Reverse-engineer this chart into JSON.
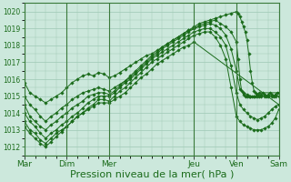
{
  "background_color": "#cce8dc",
  "grid_color": "#9ec8b4",
  "line_color": "#1a6b1a",
  "marker_color": "#1a6b1a",
  "xlabel": "Pression niveau de la mer( hPa )",
  "xlabel_fontsize": 8,
  "tick_labels": [
    "Mar",
    "Dim",
    "Mer",
    "Jeu",
    "Ven",
    "Sam"
  ],
  "ylim": [
    1011.5,
    1020.5
  ],
  "yticks": [
    1012,
    1013,
    1014,
    1015,
    1016,
    1017,
    1018,
    1019,
    1020
  ],
  "xlim": [
    0,
    144
  ],
  "day_ticks": [
    0,
    24,
    48,
    96,
    120,
    144
  ],
  "series": [
    {
      "x": [
        0,
        3,
        6,
        9,
        12,
        15,
        18,
        21,
        24,
        27,
        30,
        33,
        36,
        39,
        42,
        45,
        48,
        51,
        54,
        57,
        60,
        63,
        66,
        69,
        72,
        75,
        78,
        81,
        84,
        87,
        90,
        93,
        96,
        99,
        102,
        105,
        108,
        111,
        114,
        117,
        120,
        121,
        122,
        123,
        124,
        125,
        126,
        127,
        128,
        129,
        130,
        131,
        132,
        133,
        134,
        135,
        136,
        137,
        138,
        139,
        140,
        141,
        142,
        143,
        144
      ],
      "y": [
        1015.8,
        1015.2,
        1015.0,
        1014.8,
        1014.6,
        1014.8,
        1015.0,
        1015.2,
        1015.5,
        1015.8,
        1016.0,
        1016.2,
        1016.3,
        1016.2,
        1016.4,
        1016.3,
        1016.1,
        1016.2,
        1016.4,
        1016.6,
        1016.8,
        1017.0,
        1017.2,
        1017.4,
        1017.5,
        1017.7,
        1017.9,
        1018.1,
        1018.3,
        1018.5,
        1018.7,
        1018.9,
        1019.1,
        1019.3,
        1019.4,
        1019.5,
        1019.6,
        1019.7,
        1019.8,
        1019.9,
        1020.0,
        1019.9,
        1019.7,
        1019.4,
        1019.1,
        1018.8,
        1018.3,
        1017.5,
        1016.5,
        1015.8,
        1015.3,
        1015.2,
        1015.1,
        1015.0,
        1015.1,
        1015.2,
        1015.1,
        1015.0,
        1015.1,
        1015.2,
        1015.1,
        1015.0,
        1015.1,
        1015.2,
        1015.2
      ]
    },
    {
      "x": [
        0,
        3,
        6,
        9,
        12,
        15,
        18,
        21,
        24,
        27,
        30,
        33,
        36,
        39,
        42,
        45,
        48,
        51,
        54,
        57,
        60,
        63,
        66,
        69,
        72,
        75,
        78,
        81,
        84,
        87,
        90,
        93,
        96,
        99,
        102,
        105,
        108,
        111,
        114,
        117,
        120,
        121,
        122,
        123,
        124,
        125,
        126,
        127,
        128,
        129,
        130,
        131,
        132,
        133,
        144
      ],
      "y": [
        1015.0,
        1014.5,
        1014.2,
        1013.8,
        1013.5,
        1013.8,
        1014.0,
        1014.3,
        1014.5,
        1014.8,
        1015.0,
        1015.2,
        1015.3,
        1015.4,
        1015.5,
        1015.4,
        1015.3,
        1015.5,
        1015.7,
        1015.9,
        1016.1,
        1016.4,
        1016.7,
        1017.0,
        1017.3,
        1017.5,
        1017.8,
        1018.0,
        1018.2,
        1018.4,
        1018.6,
        1018.8,
        1019.0,
        1019.2,
        1019.3,
        1019.4,
        1019.5,
        1019.3,
        1019.1,
        1018.8,
        1018.2,
        1017.2,
        1016.0,
        1015.3,
        1015.1,
        1015.0,
        1015.0,
        1015.0,
        1015.0,
        1015.0,
        1015.0,
        1015.0,
        1015.1,
        1015.2,
        1015.2
      ]
    },
    {
      "x": [
        0,
        3,
        6,
        9,
        12,
        15,
        18,
        21,
        24,
        27,
        30,
        33,
        36,
        39,
        42,
        45,
        48,
        51,
        54,
        57,
        60,
        63,
        66,
        69,
        72,
        75,
        78,
        81,
        84,
        87,
        90,
        93,
        96,
        99,
        102,
        105,
        108,
        111,
        114,
        117,
        120,
        122,
        124,
        126,
        128,
        130,
        132,
        134,
        136,
        138,
        140,
        142,
        144
      ],
      "y": [
        1014.5,
        1013.8,
        1013.5,
        1013.2,
        1013.0,
        1013.3,
        1013.5,
        1013.8,
        1014.0,
        1014.3,
        1014.5,
        1014.7,
        1015.0,
        1015.1,
        1015.2,
        1015.2,
        1015.1,
        1015.3,
        1015.6,
        1015.9,
        1016.2,
        1016.5,
        1016.8,
        1017.1,
        1017.4,
        1017.6,
        1017.9,
        1018.1,
        1018.3,
        1018.5,
        1018.7,
        1018.9,
        1019.0,
        1019.1,
        1019.2,
        1019.3,
        1019.2,
        1019.0,
        1018.6,
        1017.8,
        1016.5,
        1015.4,
        1015.2,
        1015.1,
        1015.0,
        1015.0,
        1015.0,
        1015.0,
        1015.0,
        1015.0,
        1015.0,
        1015.0,
        1015.0
      ]
    },
    {
      "x": [
        0,
        3,
        6,
        9,
        12,
        15,
        18,
        21,
        24,
        27,
        30,
        33,
        36,
        39,
        42,
        45,
        48,
        51,
        54,
        57,
        60,
        63,
        66,
        69,
        72,
        75,
        78,
        81,
        84,
        87,
        90,
        93,
        96,
        99,
        102,
        105,
        108,
        111,
        114,
        117,
        120,
        122,
        124,
        126,
        128,
        130,
        132,
        134,
        136,
        138,
        140,
        142,
        144
      ],
      "y": [
        1014.0,
        1013.5,
        1013.2,
        1012.8,
        1012.5,
        1012.8,
        1013.0,
        1013.3,
        1013.5,
        1013.8,
        1014.0,
        1014.3,
        1014.6,
        1014.8,
        1015.0,
        1015.0,
        1015.0,
        1015.2,
        1015.5,
        1015.8,
        1016.0,
        1016.3,
        1016.6,
        1016.9,
        1017.2,
        1017.4,
        1017.6,
        1017.8,
        1018.0,
        1018.2,
        1018.4,
        1018.6,
        1018.8,
        1018.9,
        1019.0,
        1019.0,
        1018.8,
        1018.5,
        1018.0,
        1016.8,
        1015.2,
        1014.5,
        1014.2,
        1014.0,
        1013.8,
        1013.7,
        1013.6,
        1013.7,
        1013.8,
        1014.0,
        1014.2,
        1014.4,
        1014.5
      ]
    },
    {
      "x": [
        0,
        3,
        6,
        9,
        12,
        15,
        18,
        21,
        24,
        27,
        30,
        33,
        36,
        39,
        42,
        45,
        48,
        51,
        54,
        57,
        60,
        63,
        66,
        69,
        72,
        75,
        78,
        81,
        84,
        87,
        90,
        93,
        96,
        99,
        102,
        105,
        108,
        111,
        114,
        117,
        120,
        122,
        124,
        126,
        128,
        130,
        132,
        134,
        136,
        138,
        140,
        142,
        144
      ],
      "y": [
        1013.5,
        1013.0,
        1012.8,
        1012.4,
        1012.2,
        1012.5,
        1012.8,
        1013.0,
        1013.2,
        1013.5,
        1013.8,
        1014.0,
        1014.3,
        1014.5,
        1014.8,
        1014.8,
        1014.7,
        1015.0,
        1015.3,
        1015.5,
        1015.8,
        1016.1,
        1016.4,
        1016.7,
        1017.0,
        1017.2,
        1017.4,
        1017.6,
        1017.8,
        1018.0,
        1018.2,
        1018.4,
        1018.6,
        1018.7,
        1018.8,
        1018.8,
        1018.5,
        1018.0,
        1017.2,
        1015.5,
        1013.8,
        1013.5,
        1013.3,
        1013.2,
        1013.1,
        1013.0,
        1013.0,
        1013.0,
        1013.1,
        1013.2,
        1013.4,
        1013.7,
        1014.2
      ]
    },
    {
      "x": [
        0,
        3,
        6,
        9,
        12,
        15,
        18,
        21,
        24,
        27,
        30,
        33,
        36,
        39,
        42,
        45,
        48,
        51,
        54,
        57,
        60,
        63,
        66,
        69,
        72,
        75,
        78,
        81,
        84,
        87,
        90,
        93,
        96,
        144
      ],
      "y": [
        1013.2,
        1012.8,
        1012.5,
        1012.2,
        1012.0,
        1012.3,
        1012.6,
        1012.9,
        1013.2,
        1013.5,
        1013.8,
        1014.0,
        1014.2,
        1014.4,
        1014.6,
        1014.6,
        1014.6,
        1014.8,
        1015.0,
        1015.2,
        1015.5,
        1015.8,
        1016.1,
        1016.3,
        1016.6,
        1016.9,
        1017.1,
        1017.3,
        1017.5,
        1017.7,
        1017.9,
        1018.0,
        1018.2,
        1014.5
      ]
    }
  ]
}
